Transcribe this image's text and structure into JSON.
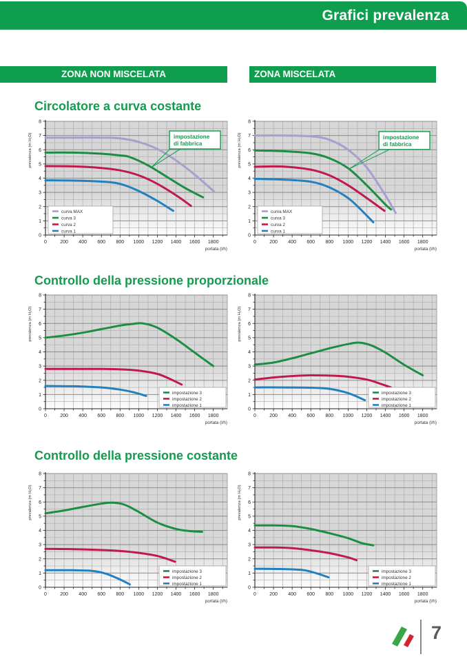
{
  "header": {
    "title": "Grafici prevalenza"
  },
  "banners": {
    "left": "ZONA NON MISCELATA",
    "right": "ZONA MISCELATA"
  },
  "section_titles": [
    "Circolatore a curva costante",
    "Controllo della pressione proporzionale",
    "Controllo della pressione costante"
  ],
  "footer": {
    "page_number": "7"
  },
  "colors": {
    "brand_green": "#0f9d4e",
    "title_green": "#169a50",
    "curve_max": "#a89fce",
    "curve_green": "#1c8e44",
    "curve_red": "#c01a4b",
    "curve_blue": "#2180bd",
    "flag_green": "#3aa648",
    "flag_red": "#d5232e",
    "plot_bg_top": "#d7d7d7",
    "plot_bg_bottom": "#fdfdfd",
    "grid_minor": "#adadad",
    "grid_major": "#8c8c8c"
  },
  "chart_data": [
    {
      "type": "line",
      "section": "Circolatore a curva costante",
      "zone": "ZONA NON MISCELATA",
      "xlabel": "portata (l/h)",
      "ylabel": "prevalenza (m H₂O)",
      "xlim": [
        0,
        1950
      ],
      "ylim": [
        0,
        8
      ],
      "x_tick_step": 200,
      "x_grid_step": 100,
      "y_tick_step": 1,
      "y_grid_step": 0.5,
      "x_ticks": [
        0,
        200,
        400,
        600,
        800,
        1000,
        1200,
        1400,
        1600,
        1800
      ],
      "y_ticks": [
        0,
        1,
        2,
        3,
        4,
        5,
        6,
        7,
        8
      ],
      "grid": true,
      "legend_position": "bottom-left",
      "callout": {
        "text_line1": "impostazione",
        "text_line2": "di fabbrica",
        "box_xy": [
          1330,
          7.32
        ],
        "target_xy": [
          1140,
          4.78
        ]
      },
      "series": [
        {
          "name": "curva MAX",
          "color_key": "curve_max",
          "points": [
            [
              0,
              6.85
            ],
            [
              300,
              6.85
            ],
            [
              600,
              6.85
            ],
            [
              800,
              6.8
            ],
            [
              1000,
              6.55
            ],
            [
              1200,
              6.05
            ],
            [
              1400,
              5.25
            ],
            [
              1600,
              4.25
            ],
            [
              1810,
              3.05
            ]
          ]
        },
        {
          "name": "curva 3",
          "color_key": "curve_green",
          "points": [
            [
              0,
              5.8
            ],
            [
              300,
              5.8
            ],
            [
              600,
              5.72
            ],
            [
              800,
              5.6
            ],
            [
              900,
              5.5
            ],
            [
              1100,
              4.9
            ],
            [
              1300,
              4.1
            ],
            [
              1500,
              3.3
            ],
            [
              1690,
              2.65
            ]
          ]
        },
        {
          "name": "curva 2",
          "color_key": "curve_red",
          "points": [
            [
              0,
              4.85
            ],
            [
              300,
              4.83
            ],
            [
              600,
              4.72
            ],
            [
              800,
              4.55
            ],
            [
              1000,
              4.2
            ],
            [
              1200,
              3.6
            ],
            [
              1400,
              2.8
            ],
            [
              1560,
              2.05
            ]
          ]
        },
        {
          "name": "curva 1",
          "color_key": "curve_blue",
          "points": [
            [
              0,
              3.85
            ],
            [
              300,
              3.83
            ],
            [
              600,
              3.76
            ],
            [
              800,
              3.6
            ],
            [
              1000,
              3.1
            ],
            [
              1200,
              2.4
            ],
            [
              1370,
              1.7
            ]
          ]
        }
      ]
    },
    {
      "type": "line",
      "section": "Circolatore a curva costante",
      "zone": "ZONA MISCELATA",
      "xlabel": "portata (l/h)",
      "ylabel": "prevalenza (m H₂O)",
      "xlim": [
        0,
        1950
      ],
      "ylim": [
        0,
        8
      ],
      "x_tick_step": 200,
      "x_grid_step": 100,
      "y_tick_step": 1,
      "y_grid_step": 0.5,
      "x_ticks": [
        0,
        200,
        400,
        600,
        800,
        1000,
        1200,
        1400,
        1600,
        1800
      ],
      "y_ticks": [
        0,
        1,
        2,
        3,
        4,
        5,
        6,
        7,
        8
      ],
      "grid": true,
      "legend_position": "bottom-left",
      "callout": {
        "text_line1": "impostazione",
        "text_line2": "di fabbrica",
        "box_xy": [
          1330,
          7.28
        ],
        "target_xy": [
          1010,
          4.65
        ]
      },
      "series": [
        {
          "name": "curva MAX",
          "color_key": "curve_max",
          "points": [
            [
              0,
              7.0
            ],
            [
              300,
              7.0
            ],
            [
              600,
              6.95
            ],
            [
              800,
              6.7
            ],
            [
              1000,
              6.0
            ],
            [
              1200,
              4.75
            ],
            [
              1400,
              2.8
            ],
            [
              1510,
              1.55
            ]
          ]
        },
        {
          "name": "curva 3",
          "color_key": "curve_green",
          "points": [
            [
              0,
              5.95
            ],
            [
              300,
              5.9
            ],
            [
              600,
              5.75
            ],
            [
              800,
              5.4
            ],
            [
              1000,
              4.7
            ],
            [
              1200,
              3.5
            ],
            [
              1400,
              2.15
            ],
            [
              1460,
              1.8
            ]
          ]
        },
        {
          "name": "curva 2",
          "color_key": "curve_red",
          "points": [
            [
              0,
              4.8
            ],
            [
              300,
              4.82
            ],
            [
              600,
              4.6
            ],
            [
              800,
              4.2
            ],
            [
              1000,
              3.5
            ],
            [
              1200,
              2.6
            ],
            [
              1390,
              1.7
            ]
          ]
        },
        {
          "name": "curva 1",
          "color_key": "curve_blue",
          "points": [
            [
              0,
              3.95
            ],
            [
              300,
              3.9
            ],
            [
              600,
              3.75
            ],
            [
              800,
              3.35
            ],
            [
              1000,
              2.6
            ],
            [
              1150,
              1.7
            ],
            [
              1270,
              0.9
            ]
          ]
        }
      ]
    },
    {
      "type": "line",
      "section": "Controllo della pressione proporzionale",
      "zone": "ZONA NON MISCELATA",
      "xlabel": "portata (l/h)",
      "ylabel": "prevalenza (m H₂O)",
      "xlim": [
        0,
        1950
      ],
      "ylim": [
        0,
        8
      ],
      "x_tick_step": 200,
      "x_grid_step": 100,
      "y_tick_step": 1,
      "y_grid_step": 0.5,
      "x_ticks": [
        0,
        200,
        400,
        600,
        800,
        1000,
        1200,
        1400,
        1600,
        1800
      ],
      "y_ticks": [
        0,
        1,
        2,
        3,
        4,
        5,
        6,
        7,
        8
      ],
      "grid": true,
      "legend_position": "bottom-right",
      "callout": null,
      "series": [
        {
          "name": "impostazione 3",
          "color_key": "curve_green",
          "points": [
            [
              0,
              5.0
            ],
            [
              200,
              5.15
            ],
            [
              400,
              5.35
            ],
            [
              600,
              5.6
            ],
            [
              800,
              5.85
            ],
            [
              950,
              5.98
            ],
            [
              1050,
              6.0
            ],
            [
              1200,
              5.7
            ],
            [
              1400,
              4.9
            ],
            [
              1600,
              3.95
            ],
            [
              1800,
              3.0
            ]
          ]
        },
        {
          "name": "impostazione 2",
          "color_key": "curve_red",
          "points": [
            [
              0,
              2.8
            ],
            [
              300,
              2.8
            ],
            [
              600,
              2.8
            ],
            [
              800,
              2.77
            ],
            [
              1000,
              2.68
            ],
            [
              1200,
              2.45
            ],
            [
              1350,
              2.05
            ],
            [
              1460,
              1.7
            ]
          ]
        },
        {
          "name": "impostazione 1",
          "color_key": "curve_blue",
          "points": [
            [
              0,
              1.6
            ],
            [
              300,
              1.58
            ],
            [
              600,
              1.5
            ],
            [
              800,
              1.35
            ],
            [
              950,
              1.15
            ],
            [
              1080,
              0.9
            ]
          ]
        }
      ]
    },
    {
      "type": "line",
      "section": "Controllo della pressione proporzionale",
      "zone": "ZONA MISCELATA",
      "xlabel": "portata (l/h)",
      "ylabel": "prevalenza (m H₂O)",
      "xlim": [
        0,
        1950
      ],
      "ylim": [
        0,
        8
      ],
      "x_tick_step": 200,
      "x_grid_step": 100,
      "y_tick_step": 1,
      "y_grid_step": 0.5,
      "x_ticks": [
        0,
        200,
        400,
        600,
        800,
        1000,
        1200,
        1400,
        1600,
        1800
      ],
      "y_ticks": [
        0,
        1,
        2,
        3,
        4,
        5,
        6,
        7,
        8
      ],
      "grid": true,
      "legend_position": "bottom-right",
      "callout": null,
      "series": [
        {
          "name": "impostazione 3",
          "color_key": "curve_green",
          "points": [
            [
              0,
              3.1
            ],
            [
              200,
              3.25
            ],
            [
              400,
              3.55
            ],
            [
              600,
              3.9
            ],
            [
              800,
              4.25
            ],
            [
              1000,
              4.55
            ],
            [
              1120,
              4.65
            ],
            [
              1250,
              4.45
            ],
            [
              1400,
              3.95
            ],
            [
              1600,
              3.1
            ],
            [
              1800,
              2.35
            ]
          ]
        },
        {
          "name": "impostazione 2",
          "color_key": "curve_red",
          "points": [
            [
              0,
              2.05
            ],
            [
              200,
              2.2
            ],
            [
              400,
              2.3
            ],
            [
              600,
              2.35
            ],
            [
              800,
              2.33
            ],
            [
              1000,
              2.25
            ],
            [
              1200,
              2.05
            ],
            [
              1350,
              1.75
            ],
            [
              1460,
              1.5
            ]
          ]
        },
        {
          "name": "impostazione 1",
          "color_key": "curve_blue",
          "points": [
            [
              0,
              1.5
            ],
            [
              300,
              1.5
            ],
            [
              600,
              1.48
            ],
            [
              800,
              1.4
            ],
            [
              1000,
              1.1
            ],
            [
              1180,
              0.6
            ]
          ]
        }
      ]
    },
    {
      "type": "line",
      "section": "Controllo della pressione costante",
      "zone": "ZONA NON MISCELATA",
      "xlabel": "portata (l/h)",
      "ylabel": "prevalenza (m H₂O)",
      "xlim": [
        0,
        1950
      ],
      "ylim": [
        0,
        8
      ],
      "x_tick_step": 200,
      "x_grid_step": 100,
      "y_tick_step": 1,
      "y_grid_step": 0.5,
      "x_ticks": [
        0,
        200,
        400,
        600,
        800,
        1000,
        1200,
        1400,
        1600,
        1800
      ],
      "y_ticks": [
        0,
        1,
        2,
        3,
        4,
        5,
        6,
        7,
        8
      ],
      "grid": true,
      "legend_position": "bottom-right",
      "callout": null,
      "series": [
        {
          "name": "impostazione 3",
          "color_key": "curve_green",
          "points": [
            [
              0,
              5.2
            ],
            [
              200,
              5.4
            ],
            [
              400,
              5.65
            ],
            [
              600,
              5.88
            ],
            [
              720,
              5.95
            ],
            [
              850,
              5.8
            ],
            [
              1000,
              5.3
            ],
            [
              1200,
              4.55
            ],
            [
              1400,
              4.1
            ],
            [
              1550,
              3.95
            ],
            [
              1680,
              3.9
            ]
          ]
        },
        {
          "name": "impostazione 2",
          "color_key": "curve_red",
          "points": [
            [
              0,
              2.7
            ],
            [
              300,
              2.68
            ],
            [
              600,
              2.62
            ],
            [
              800,
              2.55
            ],
            [
              1000,
              2.42
            ],
            [
              1200,
              2.2
            ],
            [
              1390,
              1.8
            ]
          ]
        },
        {
          "name": "impostazione 1",
          "color_key": "curve_blue",
          "points": [
            [
              0,
              1.2
            ],
            [
              300,
              1.2
            ],
            [
              500,
              1.15
            ],
            [
              650,
              0.95
            ],
            [
              800,
              0.55
            ],
            [
              905,
              0.2
            ]
          ]
        }
      ]
    },
    {
      "type": "line",
      "section": "Controllo della pressione costante",
      "zone": "ZONA MISCELATA",
      "xlabel": "portata (l/h)",
      "ylabel": "prevalenza (m H₂O)",
      "xlim": [
        0,
        1950
      ],
      "ylim": [
        0,
        8
      ],
      "x_tick_step": 200,
      "x_grid_step": 100,
      "y_tick_step": 1,
      "y_grid_step": 0.5,
      "x_ticks": [
        0,
        200,
        400,
        600,
        800,
        1000,
        1200,
        1400,
        1600,
        1800
      ],
      "y_ticks": [
        0,
        1,
        2,
        3,
        4,
        5,
        6,
        7,
        8
      ],
      "grid": true,
      "legend_position": "bottom-right",
      "callout": null,
      "series": [
        {
          "name": "impostazione 3",
          "color_key": "curve_green",
          "points": [
            [
              0,
              4.35
            ],
            [
              200,
              4.35
            ],
            [
              400,
              4.3
            ],
            [
              600,
              4.1
            ],
            [
              800,
              3.8
            ],
            [
              1000,
              3.45
            ],
            [
              1150,
              3.1
            ],
            [
              1270,
              2.95
            ]
          ]
        },
        {
          "name": "impostazione 2",
          "color_key": "curve_red",
          "points": [
            [
              0,
              2.8
            ],
            [
              200,
              2.8
            ],
            [
              400,
              2.75
            ],
            [
              600,
              2.6
            ],
            [
              800,
              2.4
            ],
            [
              1000,
              2.1
            ],
            [
              1090,
              1.9
            ]
          ]
        },
        {
          "name": "impostazione 1",
          "color_key": "curve_blue",
          "points": [
            [
              0,
              1.3
            ],
            [
              300,
              1.28
            ],
            [
              500,
              1.22
            ],
            [
              600,
              1.1
            ],
            [
              700,
              0.9
            ],
            [
              790,
              0.7
            ]
          ]
        }
      ]
    }
  ]
}
